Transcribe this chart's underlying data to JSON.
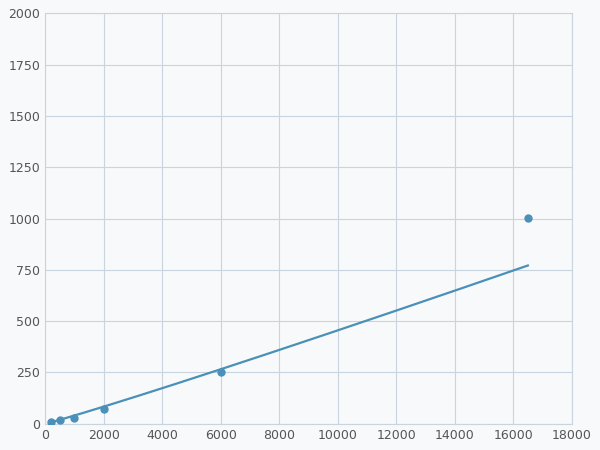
{
  "x": [
    200,
    500,
    1000,
    2000,
    6000,
    16500
  ],
  "y": [
    10,
    20,
    28,
    70,
    250,
    1005
  ],
  "line_color": "#4a90b8",
  "marker_color": "#4a90b8",
  "marker_size": 5,
  "linewidth": 1.6,
  "xlim": [
    0,
    18000
  ],
  "ylim": [
    0,
    2000
  ],
  "xticks": [
    0,
    2000,
    4000,
    6000,
    8000,
    10000,
    12000,
    14000,
    16000,
    18000
  ],
  "yticks": [
    0,
    250,
    500,
    750,
    1000,
    1250,
    1500,
    1750,
    2000
  ],
  "grid_color": "#c8d4e0",
  "bg_color": "#f8f9fa",
  "fig_bg_color": "#f8f9fa"
}
